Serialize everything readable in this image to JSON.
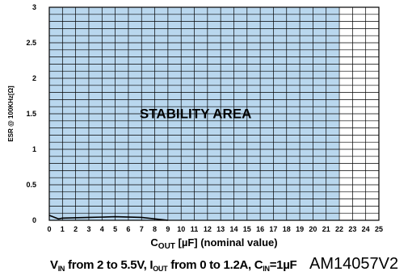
{
  "chart_data": {
    "type": "area",
    "xlabel_main": "C",
    "xlabel_sub": "OUT",
    "xlabel_rest": " [µF] (nominal value)",
    "ylabel": "ESR @ 100KHz[Ω]",
    "xlim": [
      0,
      25
    ],
    "ylim": [
      0,
      3
    ],
    "x_ticks": [
      0,
      1,
      2,
      3,
      4,
      5,
      6,
      7,
      8,
      9,
      10,
      11,
      12,
      13,
      14,
      15,
      16,
      17,
      18,
      19,
      20,
      21,
      22,
      23,
      24,
      25
    ],
    "y_ticks": [
      0,
      0.5,
      1,
      1.5,
      2,
      2.5,
      3
    ],
    "y_tick_labels": [
      "0",
      "0.5",
      "1",
      "1.5",
      "2",
      "2.5",
      "3"
    ],
    "grid": true,
    "fill_color": "#b9d7ee",
    "region": {
      "label": "STABILITY AREA",
      "x_range": [
        0,
        22
      ],
      "upper_esr": 3,
      "lower_boundary": {
        "x": [
          0,
          0.7,
          1,
          3,
          5,
          7,
          9
        ],
        "y": [
          0.07,
          0.02,
          0.03,
          0.04,
          0.05,
          0.04,
          0
        ]
      }
    }
  },
  "caption": {
    "v": "V",
    "v_sub": "IN",
    "v_rest": " from 2 to 5.5V, I",
    "i_sub": "OUT",
    "i_rest": " from 0 to 1.2A, C",
    "c_sub": "IN",
    "c_rest": "=1µF"
  },
  "figure_code": "AM14057V2"
}
